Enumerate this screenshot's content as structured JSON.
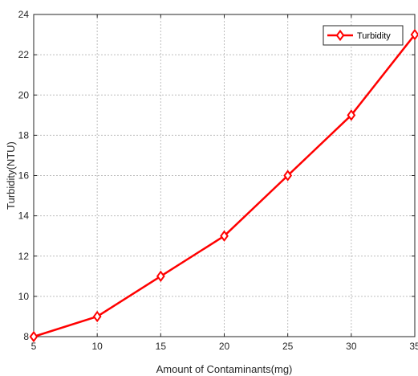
{
  "chart_data": {
    "type": "line",
    "title": "",
    "xlabel": "Amount of Contaminants(mg)",
    "ylabel": "Turbidity(NTU)",
    "x": [
      5,
      10,
      15,
      20,
      25,
      30,
      35
    ],
    "xlim": [
      5,
      35
    ],
    "ylim": [
      8,
      24
    ],
    "xticks": [
      5,
      10,
      15,
      20,
      25,
      30,
      35
    ],
    "yticks": [
      8,
      10,
      12,
      14,
      16,
      18,
      20,
      22,
      24
    ],
    "grid": true,
    "legend_position": "top-right",
    "series": [
      {
        "name": "Turbidity",
        "color": "#ff0000",
        "marker": "diamond",
        "values": [
          8,
          9,
          11,
          13,
          16,
          19,
          23
        ]
      }
    ]
  }
}
